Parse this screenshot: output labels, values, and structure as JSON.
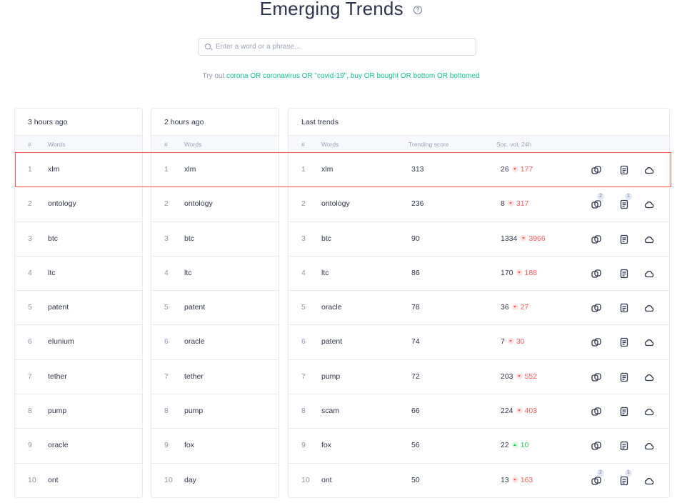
{
  "header": {
    "title": "Emerging Trends"
  },
  "search": {
    "placeholder": "Enter a word or a phrase..."
  },
  "tryout": {
    "prefix": "Try out ",
    "query": "corona OR coronavirus OR \"covid-19\", buy OR bought OR bottom OR bottomed"
  },
  "panel1": {
    "title": "3 hours ago",
    "head": {
      "rank": "#",
      "word": "Words"
    },
    "rows": [
      {
        "rank": "1",
        "word": "xlm"
      },
      {
        "rank": "2",
        "word": "ontology"
      },
      {
        "rank": "3",
        "word": "btc"
      },
      {
        "rank": "4",
        "word": "ltc"
      },
      {
        "rank": "5",
        "word": "patent"
      },
      {
        "rank": "6",
        "word": "elunium"
      },
      {
        "rank": "7",
        "word": "tether"
      },
      {
        "rank": "8",
        "word": "pump"
      },
      {
        "rank": "9",
        "word": "oracle"
      },
      {
        "rank": "10",
        "word": "ont"
      }
    ]
  },
  "panel2": {
    "title": "2 hours ago",
    "head": {
      "rank": "#",
      "word": "Words"
    },
    "rows": [
      {
        "rank": "1",
        "word": "xlm"
      },
      {
        "rank": "2",
        "word": "ontology"
      },
      {
        "rank": "3",
        "word": "btc"
      },
      {
        "rank": "4",
        "word": "ltc"
      },
      {
        "rank": "5",
        "word": "patent"
      },
      {
        "rank": "6",
        "word": "oracle"
      },
      {
        "rank": "7",
        "word": "tether"
      },
      {
        "rank": "8",
        "word": "pump"
      },
      {
        "rank": "9",
        "word": "fox"
      },
      {
        "rank": "10",
        "word": "day"
      }
    ]
  },
  "panel3": {
    "title": "Last trends",
    "head": {
      "rank": "#",
      "word": "Words",
      "score": "Trending score",
      "vol": "Soc. vol, 24h"
    },
    "rows": [
      {
        "rank": "1",
        "word": "xlm",
        "score": "313",
        "vol": "26",
        "delta": "177",
        "dir": "down",
        "connect_badge": "",
        "insight_badge": ""
      },
      {
        "rank": "2",
        "word": "ontology",
        "score": "236",
        "vol": "8",
        "delta": "317",
        "dir": "down",
        "connect_badge": "2",
        "insight_badge": "1"
      },
      {
        "rank": "3",
        "word": "btc",
        "score": "90",
        "vol": "1334",
        "delta": "3966",
        "dir": "down",
        "connect_badge": "",
        "insight_badge": ""
      },
      {
        "rank": "4",
        "word": "ltc",
        "score": "86",
        "vol": "170",
        "delta": "188",
        "dir": "down",
        "connect_badge": "",
        "insight_badge": ""
      },
      {
        "rank": "5",
        "word": "oracle",
        "score": "78",
        "vol": "36",
        "delta": "27",
        "dir": "down",
        "connect_badge": "",
        "insight_badge": ""
      },
      {
        "rank": "6",
        "word": "patent",
        "score": "74",
        "vol": "7",
        "delta": "30",
        "dir": "down",
        "connect_badge": "",
        "insight_badge": ""
      },
      {
        "rank": "7",
        "word": "pump",
        "score": "72",
        "vol": "203",
        "delta": "552",
        "dir": "down",
        "connect_badge": "",
        "insight_badge": ""
      },
      {
        "rank": "8",
        "word": "scam",
        "score": "66",
        "vol": "224",
        "delta": "403",
        "dir": "down",
        "connect_badge": "",
        "insight_badge": ""
      },
      {
        "rank": "9",
        "word": "fox",
        "score": "56",
        "vol": "22",
        "delta": "10",
        "dir": "up",
        "connect_badge": "",
        "insight_badge": ""
      },
      {
        "rank": "10",
        "word": "ont",
        "score": "50",
        "vol": "13",
        "delta": "163",
        "dir": "down",
        "connect_badge": "2",
        "insight_badge": "1"
      }
    ]
  },
  "icons": {
    "connect": "connected-words-icon",
    "insight": "insight-document-icon",
    "cloud": "word-cloud-icon"
  },
  "colors": {
    "accent": "#14c393",
    "down": "#ff5b5b",
    "up": "#26c953",
    "highlight": "#f05a4a"
  }
}
